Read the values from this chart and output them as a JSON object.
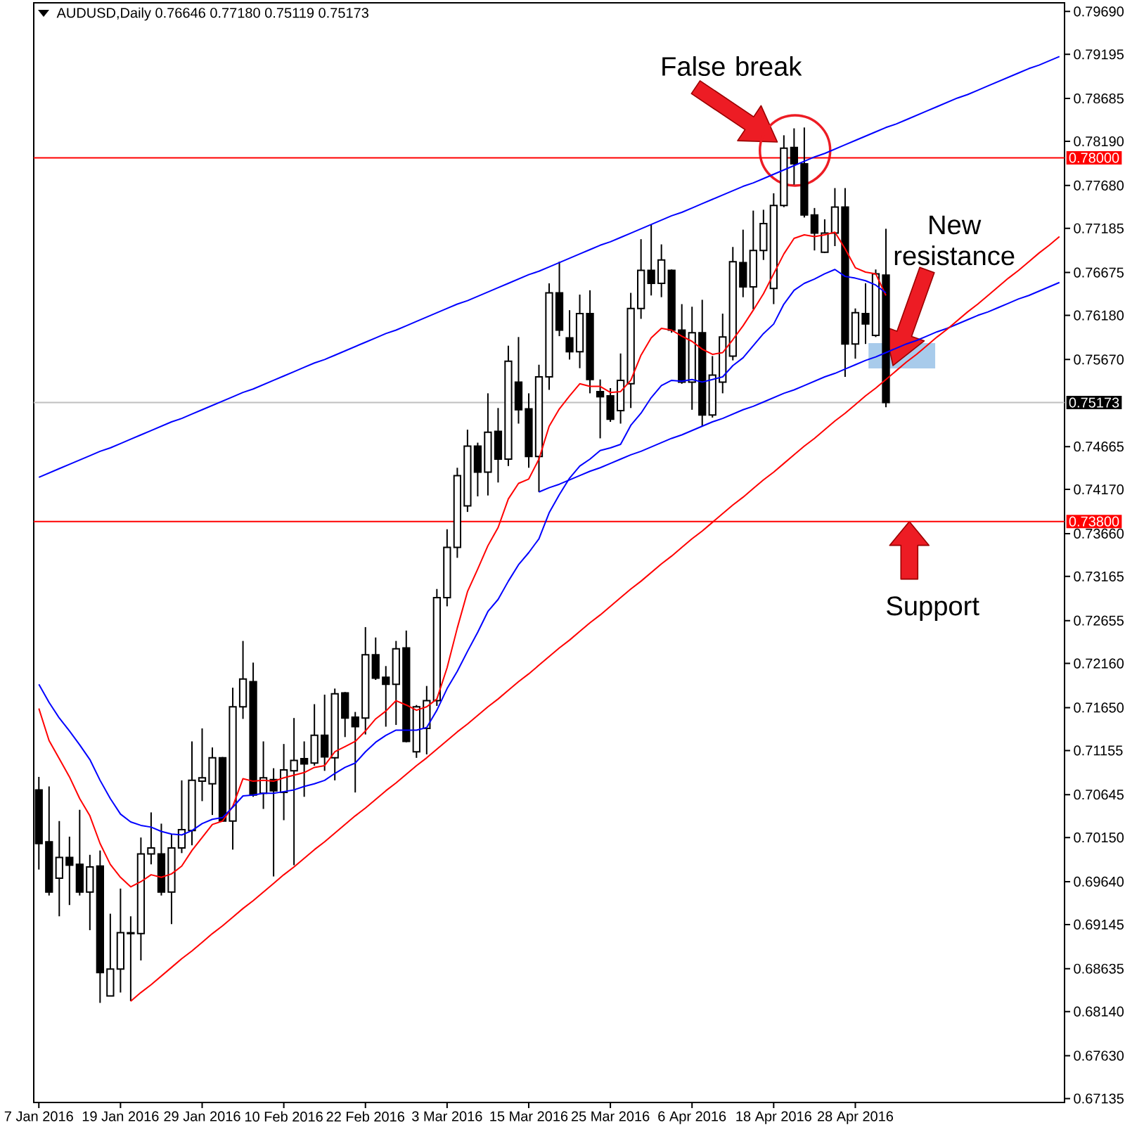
{
  "chart_data": {
    "type": "candlestick",
    "title": "AUDUSD,Daily 0.76646 0.77180 0.75119 0.75173",
    "categories": [
      "7 Jan 2016",
      null,
      null,
      null,
      null,
      null,
      null,
      null,
      "19 Jan 2016",
      null,
      null,
      null,
      null,
      null,
      null,
      null,
      "29 Jan 2016",
      null,
      null,
      null,
      null,
      null,
      null,
      null,
      "10 Feb 2016",
      null,
      null,
      null,
      null,
      null,
      null,
      null,
      "22 Feb 2016",
      null,
      null,
      null,
      null,
      null,
      null,
      null,
      "3 Mar 2016",
      null,
      null,
      null,
      null,
      null,
      null,
      null,
      "15 Mar 2016",
      null,
      null,
      null,
      null,
      null,
      null,
      null,
      "25 Mar 2016",
      null,
      null,
      null,
      null,
      null,
      null,
      null,
      "6 Apr 2016",
      null,
      null,
      null,
      null,
      null,
      null,
      null,
      "18 Apr 2016",
      null,
      null,
      null,
      null,
      null,
      null,
      null,
      "28 Apr 2016",
      null,
      null,
      null,
      null,
      null,
      null,
      null,
      null,
      null,
      null,
      null,
      null,
      null,
      null,
      null,
      null,
      null,
      null,
      null,
      null
    ],
    "ohlc": [
      [
        0.707,
        0.7085,
        0.6978,
        0.7008
      ],
      [
        0.701,
        0.7074,
        0.6948,
        0.6952
      ],
      [
        0.6968,
        0.7034,
        0.6924,
        0.6992
      ],
      [
        0.6992,
        0.7016,
        0.6937,
        0.6983
      ],
      [
        0.6984,
        0.7047,
        0.6948,
        0.6952
      ],
      [
        0.6952,
        0.6995,
        0.6908,
        0.6981
      ],
      [
        0.6982,
        0.7,
        0.6824,
        0.6859
      ],
      [
        0.6832,
        0.6927,
        0.6832,
        0.6863
      ],
      [
        0.6863,
        0.6956,
        0.6836,
        0.6905
      ],
      [
        0.6904,
        0.6924,
        0.6826,
        0.6905
      ],
      [
        0.6904,
        0.7015,
        0.6873,
        0.6996
      ],
      [
        0.6996,
        0.7044,
        0.6984,
        0.7003
      ],
      [
        0.6996,
        0.7031,
        0.6948,
        0.6952
      ],
      [
        0.6952,
        0.7019,
        0.6915,
        0.7003
      ],
      [
        0.7003,
        0.7081,
        0.6997,
        0.7024
      ],
      [
        0.7023,
        0.7126,
        0.7006,
        0.7081
      ],
      [
        0.708,
        0.7141,
        0.7057,
        0.7084
      ],
      [
        0.7077,
        0.7119,
        0.7041,
        0.7107
      ],
      [
        0.7107,
        0.7108,
        0.7033,
        0.7034
      ],
      [
        0.7034,
        0.7188,
        0.7001,
        0.7166
      ],
      [
        0.7166,
        0.7242,
        0.7152,
        0.7198
      ],
      [
        0.7195,
        0.7217,
        0.7062,
        0.7064
      ],
      [
        0.7066,
        0.7126,
        0.7048,
        0.7084
      ],
      [
        0.7082,
        0.7095,
        0.697,
        0.7069
      ],
      [
        0.7067,
        0.7123,
        0.7035,
        0.7093
      ],
      [
        0.7092,
        0.7153,
        0.6983,
        0.7104
      ],
      [
        0.7106,
        0.7126,
        0.7062,
        0.71
      ],
      [
        0.7101,
        0.7169,
        0.7098,
        0.7133
      ],
      [
        0.7133,
        0.718,
        0.7092,
        0.7108
      ],
      [
        0.7107,
        0.7187,
        0.7081,
        0.7181
      ],
      [
        0.7182,
        0.7183,
        0.7131,
        0.7153
      ],
      [
        0.7154,
        0.716,
        0.7067,
        0.7143
      ],
      [
        0.7153,
        0.7258,
        0.7134,
        0.7226
      ],
      [
        0.7226,
        0.7246,
        0.7197,
        0.7199
      ],
      [
        0.72,
        0.7213,
        0.7143,
        0.7192
      ],
      [
        0.7192,
        0.7242,
        0.7145,
        0.7233
      ],
      [
        0.7234,
        0.7254,
        0.7125,
        0.7126
      ],
      [
        0.7114,
        0.7168,
        0.7107,
        0.7166
      ],
      [
        0.7141,
        0.719,
        0.7111,
        0.7173
      ],
      [
        0.7173,
        0.7302,
        0.7167,
        0.7292
      ],
      [
        0.7292,
        0.7371,
        0.7282,
        0.735
      ],
      [
        0.735,
        0.7442,
        0.7338,
        0.7433
      ],
      [
        0.7398,
        0.7486,
        0.7391,
        0.7467
      ],
      [
        0.7467,
        0.7471,
        0.7409,
        0.7437
      ],
      [
        0.7437,
        0.7528,
        0.741,
        0.7483
      ],
      [
        0.7484,
        0.7511,
        0.7425,
        0.7452
      ],
      [
        0.7452,
        0.7583,
        0.7444,
        0.7565
      ],
      [
        0.7541,
        0.7593,
        0.7493,
        0.7509
      ],
      [
        0.751,
        0.7528,
        0.7442,
        0.7455
      ],
      [
        0.7455,
        0.7561,
        0.7414,
        0.7547
      ],
      [
        0.7547,
        0.7655,
        0.7532,
        0.7644
      ],
      [
        0.7644,
        0.768,
        0.7594,
        0.7601
      ],
      [
        0.7592,
        0.7624,
        0.7567,
        0.7576
      ],
      [
        0.7576,
        0.7642,
        0.7557,
        0.762
      ],
      [
        0.762,
        0.7647,
        0.7528,
        0.7544
      ],
      [
        0.753,
        0.7544,
        0.7476,
        0.7524
      ],
      [
        0.7525,
        0.7534,
        0.7495,
        0.7498
      ],
      [
        0.7508,
        0.7574,
        0.7493,
        0.7543
      ],
      [
        0.7539,
        0.7644,
        0.7511,
        0.7626
      ],
      [
        0.7626,
        0.7706,
        0.7614,
        0.767
      ],
      [
        0.767,
        0.7723,
        0.7641,
        0.7655
      ],
      [
        0.7655,
        0.77,
        0.7639,
        0.7682
      ],
      [
        0.767,
        0.7671,
        0.7598,
        0.7601
      ],
      [
        0.7601,
        0.7631,
        0.7539,
        0.7541
      ],
      [
        0.7541,
        0.7628,
        0.7509,
        0.7598
      ],
      [
        0.7598,
        0.7636,
        0.749,
        0.7503
      ],
      [
        0.7503,
        0.7571,
        0.75,
        0.7549
      ],
      [
        0.7541,
        0.762,
        0.7528,
        0.7593
      ],
      [
        0.7571,
        0.7697,
        0.7566,
        0.768
      ],
      [
        0.7679,
        0.7717,
        0.7639,
        0.7651
      ],
      [
        0.7651,
        0.7739,
        0.7625,
        0.7693
      ],
      [
        0.7693,
        0.774,
        0.7682,
        0.7724
      ],
      [
        0.7649,
        0.7759,
        0.7631,
        0.7745
      ],
      [
        0.7745,
        0.7826,
        0.7743,
        0.7811
      ],
      [
        0.7812,
        0.7834,
        0.7769,
        0.7793
      ],
      [
        0.7793,
        0.7835,
        0.7731,
        0.7734
      ],
      [
        0.7734,
        0.7742,
        0.7693,
        0.7713
      ],
      [
        0.7691,
        0.7729,
        0.769,
        0.7713
      ],
      [
        0.7713,
        0.7765,
        0.7698,
        0.7743
      ],
      [
        0.7743,
        0.7765,
        0.7547,
        0.7585
      ],
      [
        0.7585,
        0.7626,
        0.7568,
        0.7621
      ],
      [
        0.762,
        0.7655,
        0.7585,
        0.7608
      ],
      [
        0.7595,
        0.7671,
        0.7593,
        0.7666
      ],
      [
        0.76646,
        0.7718,
        0.75119,
        0.75173
      ],
      null,
      null,
      null,
      null,
      null,
      null,
      null,
      null,
      null,
      null,
      null,
      null,
      null,
      null,
      null,
      null,
      null
    ],
    "series": [
      {
        "type": "line",
        "color": "#ff0000",
        "values": [
          0.7164,
          0.7127,
          0.7106,
          0.7085,
          0.706,
          0.704,
          0.7008,
          0.6984,
          0.6969,
          0.6958,
          0.6964,
          0.6972,
          0.6969,
          0.6973,
          0.6982,
          0.7,
          0.7015,
          0.703,
          0.7034,
          0.7051,
          0.7083,
          0.708,
          0.7081,
          0.708,
          0.7084,
          0.7087,
          0.709,
          0.7096,
          0.7098,
          0.7114,
          0.712,
          0.7126,
          0.7138,
          0.7152,
          0.7161,
          0.7173,
          0.7168,
          0.7162,
          0.7166,
          0.7175,
          0.7211,
          0.7257,
          0.7299,
          0.7325,
          0.7352,
          0.7373,
          0.7406,
          0.7424,
          0.7429,
          0.7452,
          0.749,
          0.751,
          0.7525,
          0.7539,
          0.7536,
          0.7536,
          0.7529,
          0.753,
          0.7543,
          0.7572,
          0.7592,
          0.7603,
          0.7601,
          0.7594,
          0.7588,
          0.7579,
          0.7573,
          0.7575,
          0.759,
          0.7606,
          0.7624,
          0.7643,
          0.7666,
          0.7689,
          0.7707,
          0.7711,
          0.7709,
          0.7711,
          0.7714,
          0.7695,
          0.7673,
          0.7668,
          0.7666,
          0.7641,
          null,
          null,
          null,
          null,
          null,
          null,
          null,
          null,
          null,
          null,
          null,
          null,
          null,
          null,
          null,
          null,
          null
        ]
      },
      {
        "type": "line",
        "color": "#0000ff",
        "values": [
          0.7192,
          0.7171,
          0.7153,
          0.7138,
          0.7122,
          0.7105,
          0.7081,
          0.706,
          0.7042,
          0.7033,
          0.7029,
          0.7027,
          0.7022,
          0.7019,
          0.7018,
          0.7023,
          0.7031,
          0.7036,
          0.7038,
          0.705,
          0.7063,
          0.7064,
          0.7066,
          0.7066,
          0.7068,
          0.707,
          0.7074,
          0.7077,
          0.7081,
          0.7089,
          0.7096,
          0.7101,
          0.7114,
          0.7125,
          0.7133,
          0.7139,
          0.7139,
          0.7139,
          0.7142,
          0.7162,
          0.7187,
          0.7207,
          0.723,
          0.7252,
          0.7276,
          0.729,
          0.7311,
          0.733,
          0.7344,
          0.736,
          0.739,
          0.7411,
          0.743,
          0.7444,
          0.7452,
          0.7462,
          0.7465,
          0.7469,
          0.7491,
          0.7505,
          0.7523,
          0.7537,
          0.7543,
          0.7542,
          0.7544,
          0.7541,
          0.7544,
          0.7547,
          0.756,
          0.7569,
          0.7583,
          0.7597,
          0.7608,
          0.7631,
          0.7647,
          0.7655,
          0.766,
          0.7666,
          0.7671,
          0.7663,
          0.7661,
          0.7658,
          0.7653,
          0.7644,
          null,
          null,
          null,
          null,
          null,
          null,
          null,
          null,
          null,
          null,
          null,
          null,
          null,
          null,
          null,
          null,
          null
        ]
      },
      {
        "type": "line",
        "color": "#0000ff",
        "values": [
          0.7431,
          0.7436,
          0.7441,
          0.7446,
          0.7451,
          0.7456,
          0.7461,
          0.7465,
          0.747,
          0.7475,
          0.748,
          0.7485,
          0.749,
          0.7495,
          0.7499,
          0.7504,
          0.7509,
          0.7514,
          0.7519,
          0.7524,
          0.7529,
          0.7533,
          0.7538,
          0.7543,
          0.7548,
          0.7553,
          0.7558,
          0.7563,
          0.7567,
          0.7572,
          0.7577,
          0.7582,
          0.7587,
          0.7592,
          0.7597,
          0.7601,
          0.7606,
          0.7611,
          0.7616,
          0.7621,
          0.7626,
          0.7631,
          0.7635,
          0.764,
          0.7645,
          0.765,
          0.7655,
          0.766,
          0.7665,
          0.7669,
          0.7674,
          0.7679,
          0.7684,
          0.7689,
          0.7694,
          0.7699,
          0.7703,
          0.7708,
          0.7713,
          0.7718,
          0.7723,
          0.7728,
          0.7733,
          0.7737,
          0.7742,
          0.7747,
          0.7752,
          0.7757,
          0.7762,
          0.7767,
          0.7771,
          0.7776,
          0.7781,
          0.7786,
          0.7791,
          0.7796,
          0.7801,
          0.7805,
          0.781,
          0.7815,
          0.782,
          0.7825,
          0.783,
          0.7835,
          0.7839,
          0.7844,
          0.7849,
          0.7854,
          0.7859,
          0.7864,
          0.7869,
          0.7873,
          0.7878,
          0.7883,
          0.7888,
          0.7893,
          0.7898,
          0.7903,
          0.7907,
          0.7912,
          0.7917
        ]
      },
      {
        "type": "line",
        "color": "#0000ff",
        "values": [
          null,
          null,
          null,
          null,
          null,
          null,
          null,
          null,
          null,
          null,
          null,
          null,
          null,
          null,
          null,
          null,
          null,
          null,
          null,
          null,
          null,
          null,
          null,
          null,
          null,
          null,
          null,
          null,
          null,
          null,
          null,
          null,
          null,
          null,
          null,
          null,
          null,
          null,
          null,
          null,
          null,
          null,
          null,
          null,
          null,
          null,
          null,
          null,
          null,
          0.7414,
          0.7419,
          0.7423,
          0.7428,
          0.7433,
          0.7438,
          0.7442,
          0.7447,
          0.7452,
          0.7457,
          0.7461,
          0.7466,
          0.7471,
          0.7476,
          0.748,
          0.7485,
          0.749,
          0.7495,
          0.7499,
          0.7504,
          0.7509,
          0.7513,
          0.7518,
          0.7523,
          0.7528,
          0.7532,
          0.7537,
          0.7542,
          0.7547,
          0.7551,
          0.7556,
          0.7561,
          0.7566,
          0.757,
          0.7575,
          0.758,
          0.7585,
          0.7589,
          0.7594,
          0.7599,
          0.7603,
          0.7608,
          0.7613,
          0.7618,
          0.7622,
          0.7627,
          0.7632,
          0.7637,
          0.7641,
          0.7646,
          0.7651,
          0.7656
        ]
      },
      {
        "type": "line",
        "color": "#ff0000",
        "values": [
          null,
          null,
          null,
          null,
          null,
          null,
          null,
          null,
          null,
          0.6826,
          0.6836,
          0.6845,
          0.6855,
          0.6865,
          0.6875,
          0.6884,
          0.6894,
          0.6904,
          0.6913,
          0.6923,
          0.6933,
          0.6942,
          0.6952,
          0.6962,
          0.6972,
          0.6981,
          0.6991,
          0.7001,
          0.701,
          0.702,
          0.703,
          0.704,
          0.7049,
          0.7059,
          0.7069,
          0.7078,
          0.7088,
          0.7098,
          0.7107,
          0.7117,
          0.7127,
          0.7137,
          0.7146,
          0.7156,
          0.7166,
          0.7175,
          0.7185,
          0.7195,
          0.7204,
          0.7214,
          0.7224,
          0.7234,
          0.7243,
          0.7253,
          0.7263,
          0.7272,
          0.7282,
          0.7292,
          0.7302,
          0.7311,
          0.7321,
          0.7331,
          0.734,
          0.735,
          0.736,
          0.7369,
          0.7379,
          0.7389,
          0.7399,
          0.7408,
          0.7418,
          0.7428,
          0.7437,
          0.7447,
          0.7457,
          0.7467,
          0.7476,
          0.7486,
          0.7496,
          0.7505,
          0.7515,
          0.7525,
          0.7534,
          0.7544,
          0.7554,
          0.7564,
          0.7573,
          0.7583,
          0.7593,
          0.7602,
          0.7612,
          0.7622,
          0.7631,
          0.7641,
          0.7651,
          0.7661,
          0.767,
          0.768,
          0.769,
          0.7699,
          0.7709
        ]
      }
    ],
    "ylim": [
      0.6709,
      0.7979
    ],
    "yticks": [
      {
        "value": 0.7969,
        "label": "0.79690"
      },
      0.79195,
      0.78685,
      {
        "value": 0.7819,
        "label": "0.78190"
      },
      {
        "value": 0.7768,
        "label": "0.77680"
      },
      0.77185,
      0.76675,
      {
        "value": 0.7618,
        "label": "0.76180"
      },
      {
        "value": 0.7567,
        "label": "0.75670"
      },
      0.74665,
      {
        "value": 0.7417,
        "label": "0.74170"
      },
      {
        "value": 0.7366,
        "label": "0.73660"
      },
      0.73165,
      0.72655,
      {
        "value": 0.7216,
        "label": "0.72160"
      },
      {
        "value": 0.7165,
        "label": "0.71650"
      },
      0.71155,
      0.70645,
      {
        "value": 0.7015,
        "label": "0.70150"
      },
      {
        "value": 0.6964,
        "label": "0.69640"
      },
      0.69145,
      0.68635,
      {
        "value": 0.6814,
        "label": "0.68140"
      },
      {
        "value": 0.6763,
        "label": "0.67630"
      },
      0.67135
    ],
    "ref_lines": [
      {
        "axis": "y",
        "value": 0.78,
        "label": "0.78000",
        "color": "#ff0000"
      },
      {
        "axis": "y",
        "value": 0.75173,
        "label": "0.75173",
        "color": "#c0c0c0"
      },
      {
        "axis": "y",
        "value": 0.738,
        "label": "0.73800",
        "color": "#ff0000"
      }
    ],
    "annotations": [
      "False break",
      "New resistance",
      {
        "text": "Support",
        "y": 0.738
      }
    ]
  }
}
